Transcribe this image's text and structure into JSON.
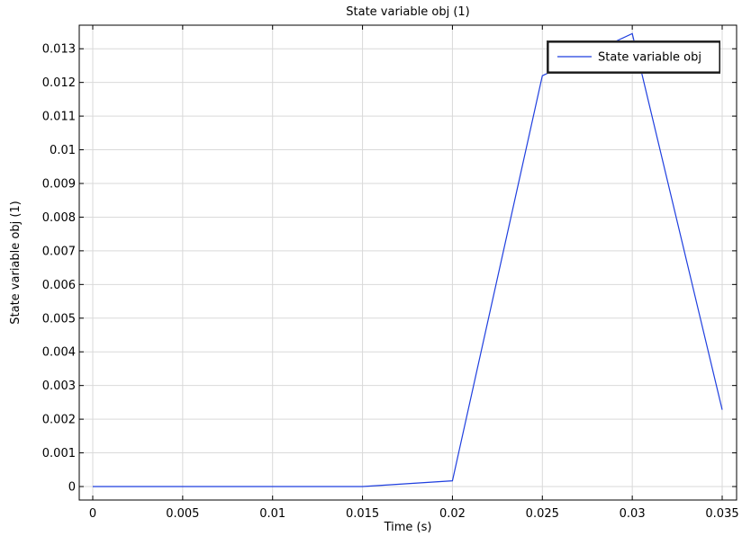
{
  "chart_data": {
    "type": "line",
    "title": "State variable obj (1)",
    "xlabel": "Time (s)",
    "ylabel": "State variable obj (1)",
    "xlim": [
      0,
      0.035
    ],
    "ylim": [
      0,
      0.0137
    ],
    "x_ticks": [
      0,
      0.005,
      0.01,
      0.015,
      0.02,
      0.025,
      0.03,
      0.035
    ],
    "x_tick_labels": [
      "0",
      "0.005",
      "0.01",
      "0.015",
      "0.02",
      "0.025",
      "0.03",
      "0.035"
    ],
    "y_ticks": [
      0,
      0.001,
      0.002,
      0.003,
      0.004,
      0.005,
      0.006,
      0.007,
      0.008,
      0.009,
      0.01,
      0.011,
      0.012,
      0.013
    ],
    "y_tick_labels": [
      "0",
      "0.001",
      "0.002",
      "0.003",
      "0.004",
      "0.005",
      "0.006",
      "0.007",
      "0.008",
      "0.009",
      "0.01",
      "0.011",
      "0.012",
      "0.013"
    ],
    "grid": true,
    "legend_position": "top-right",
    "series": [
      {
        "name": "State variable obj",
        "color": "#1f3fdf",
        "x": [
          0,
          0.005,
          0.01,
          0.015,
          0.02,
          0.025,
          0.03,
          0.035
        ],
        "y": [
          0,
          0,
          0,
          0,
          0.00017,
          0.0122,
          0.01345,
          0.00228
        ]
      }
    ]
  }
}
